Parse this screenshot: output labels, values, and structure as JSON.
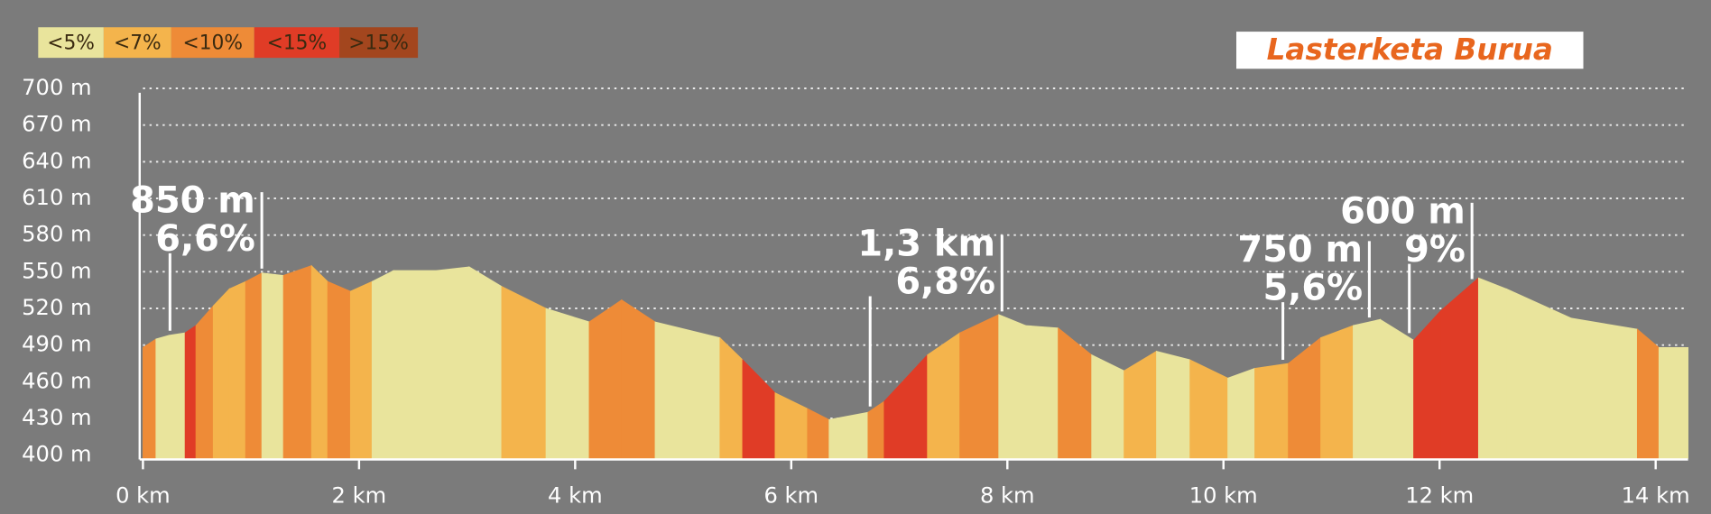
{
  "logo": "Lasterketa Burua",
  "chart_data": {
    "type": "area",
    "classes": [
      {
        "label": "<5%",
        "color": "#e9e49c"
      },
      {
        "label": "<7%",
        "color": "#f4b44c"
      },
      {
        "label": "<10%",
        "color": "#ee8b37"
      },
      {
        "label": "<15%",
        "color": "#e03c26"
      },
      {
        "label": ">15%",
        "color": "#a3461e"
      }
    ],
    "x": [
      0,
      0.12,
      0.24,
      0.39,
      0.49,
      0.65,
      0.8,
      0.95,
      1.1,
      1.3,
      1.56,
      1.71,
      1.92,
      2.12,
      2.32,
      2.72,
      3.02,
      3.32,
      3.73,
      4.13,
      4.43,
      4.74,
      5.34,
      5.55,
      5.85,
      6.15,
      6.35,
      6.71,
      6.86,
      7.26,
      7.56,
      7.92,
      8.17,
      8.47,
      8.78,
      9.08,
      9.38,
      9.69,
      10.04,
      10.29,
      10.6,
      10.9,
      11.2,
      11.45,
      11.76,
      12.01,
      12.36,
      12.62,
      13.22,
      13.83,
      14.03,
      14.3
    ],
    "values": [
      488,
      495,
      498,
      500,
      506,
      522,
      536,
      542,
      549,
      547,
      555,
      542,
      534,
      542,
      551,
      551,
      554,
      538,
      520,
      509,
      527,
      509,
      496,
      478,
      451,
      438,
      429,
      435,
      444,
      482,
      500,
      515,
      506,
      504,
      482,
      469,
      485,
      478,
      463,
      471,
      475,
      496,
      506,
      511,
      494,
      518,
      545,
      536,
      512,
      503,
      488,
      488
    ],
    "segment_class": [
      2,
      0,
      0,
      3,
      2,
      1,
      1,
      2,
      0,
      2,
      1,
      2,
      1,
      0,
      0,
      0,
      0,
      1,
      0,
      2,
      2,
      0,
      1,
      3,
      1,
      2,
      0,
      2,
      3,
      1,
      2,
      0,
      0,
      2,
      0,
      1,
      0,
      1,
      0,
      1,
      2,
      1,
      0,
      0,
      3,
      3,
      0,
      0,
      0,
      2,
      0
    ],
    "xlim": [
      0,
      14.3
    ],
    "ylim": [
      400,
      700
    ],
    "xticks": [
      {
        "value": 0,
        "label": "0 km"
      },
      {
        "value": 2,
        "label": "2 km"
      },
      {
        "value": 4,
        "label": "4 km"
      },
      {
        "value": 6,
        "label": "6 km"
      },
      {
        "value": 8,
        "label": "8 km"
      },
      {
        "value": 10,
        "label": "10 km"
      },
      {
        "value": 12,
        "label": "12 km"
      },
      {
        "value": 14,
        "label": "14 km"
      }
    ],
    "yticks": [
      {
        "value": 400,
        "label": "400 m"
      },
      {
        "value": 430,
        "label": "430 m"
      },
      {
        "value": 460,
        "label": "460 m"
      },
      {
        "value": 490,
        "label": "490 m"
      },
      {
        "value": 520,
        "label": "520 m"
      },
      {
        "value": 550,
        "label": "550 m"
      },
      {
        "value": 580,
        "label": "580 m"
      },
      {
        "value": 610,
        "label": "610 m"
      },
      {
        "value": 640,
        "label": "640 m"
      },
      {
        "value": 670,
        "label": "670 m"
      },
      {
        "value": 700,
        "label": "700 m"
      }
    ],
    "grid": true,
    "annotations": [
      {
        "lines": [
          "850 m",
          "6,6%"
        ],
        "x_start": 0.25,
        "x_end": 1.1
      },
      {
        "lines": [
          "1,3 km",
          "6,8%"
        ],
        "x_start": 6.73,
        "x_end": 7.95
      },
      {
        "lines": [
          "750 m",
          "5,6%"
        ],
        "x_start": 10.55,
        "x_end": 11.35
      },
      {
        "lines": [
          "600 m",
          "9%"
        ],
        "x_start": 11.72,
        "x_end": 12.3
      }
    ]
  }
}
